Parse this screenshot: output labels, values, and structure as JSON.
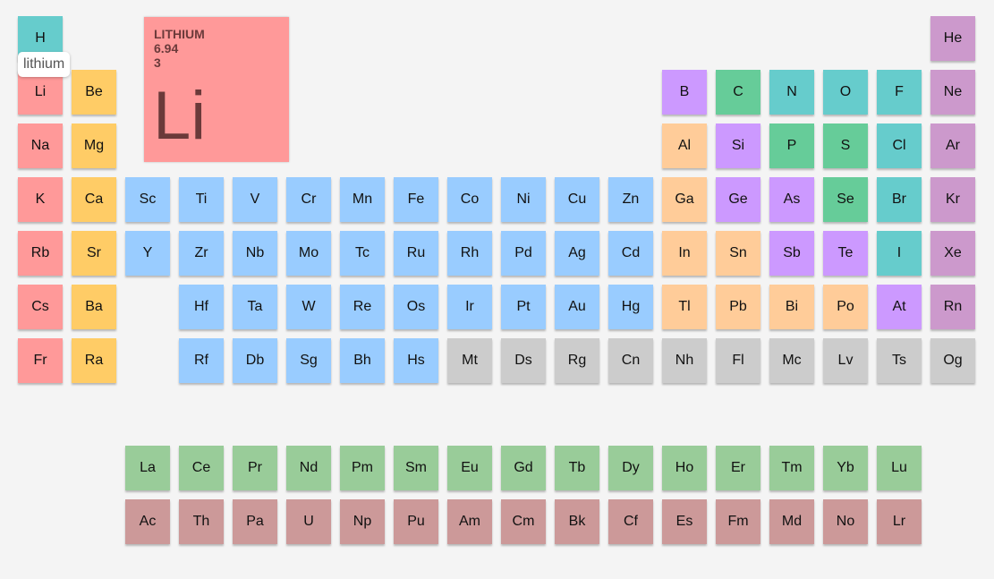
{
  "categories": {
    "nonmetal": "#66cccc",
    "alkali": "#ff9999",
    "alkaline": "#ffcc66",
    "transition": "#99ccff",
    "post": "#ffcc99",
    "metalloid": "#cc99ff",
    "other": "#66cc99",
    "noble": "#cc99cc",
    "unknown": "#cccccc",
    "lanthanide": "#99cc99",
    "actinide": "#cc9999"
  },
  "elements": [
    {
      "symbol": "H",
      "period": 1,
      "group": 1,
      "category": "nonmetal"
    },
    {
      "symbol": "He",
      "period": 1,
      "group": 18,
      "category": "noble"
    },
    {
      "symbol": "Li",
      "period": 2,
      "group": 1,
      "category": "alkali"
    },
    {
      "symbol": "Be",
      "period": 2,
      "group": 2,
      "category": "alkaline"
    },
    {
      "symbol": "B",
      "period": 2,
      "group": 13,
      "category": "metalloid"
    },
    {
      "symbol": "C",
      "period": 2,
      "group": 14,
      "category": "other"
    },
    {
      "symbol": "N",
      "period": 2,
      "group": 15,
      "category": "nonmetal"
    },
    {
      "symbol": "O",
      "period": 2,
      "group": 16,
      "category": "nonmetal"
    },
    {
      "symbol": "F",
      "period": 2,
      "group": 17,
      "category": "nonmetal"
    },
    {
      "symbol": "Ne",
      "period": 2,
      "group": 18,
      "category": "noble"
    },
    {
      "symbol": "Na",
      "period": 3,
      "group": 1,
      "category": "alkali"
    },
    {
      "symbol": "Mg",
      "period": 3,
      "group": 2,
      "category": "alkaline"
    },
    {
      "symbol": "Al",
      "period": 3,
      "group": 13,
      "category": "post"
    },
    {
      "symbol": "Si",
      "period": 3,
      "group": 14,
      "category": "metalloid"
    },
    {
      "symbol": "P",
      "period": 3,
      "group": 15,
      "category": "other"
    },
    {
      "symbol": "S",
      "period": 3,
      "group": 16,
      "category": "other"
    },
    {
      "symbol": "Cl",
      "period": 3,
      "group": 17,
      "category": "nonmetal"
    },
    {
      "symbol": "Ar",
      "period": 3,
      "group": 18,
      "category": "noble"
    },
    {
      "symbol": "K",
      "period": 4,
      "group": 1,
      "category": "alkali"
    },
    {
      "symbol": "Ca",
      "period": 4,
      "group": 2,
      "category": "alkaline"
    },
    {
      "symbol": "Sc",
      "period": 4,
      "group": 3,
      "category": "transition"
    },
    {
      "symbol": "Ti",
      "period": 4,
      "group": 4,
      "category": "transition"
    },
    {
      "symbol": "V",
      "period": 4,
      "group": 5,
      "category": "transition"
    },
    {
      "symbol": "Cr",
      "period": 4,
      "group": 6,
      "category": "transition"
    },
    {
      "symbol": "Mn",
      "period": 4,
      "group": 7,
      "category": "transition"
    },
    {
      "symbol": "Fe",
      "period": 4,
      "group": 8,
      "category": "transition"
    },
    {
      "symbol": "Co",
      "period": 4,
      "group": 9,
      "category": "transition"
    },
    {
      "symbol": "Ni",
      "period": 4,
      "group": 10,
      "category": "transition"
    },
    {
      "symbol": "Cu",
      "period": 4,
      "group": 11,
      "category": "transition"
    },
    {
      "symbol": "Zn",
      "period": 4,
      "group": 12,
      "category": "transition"
    },
    {
      "symbol": "Ga",
      "period": 4,
      "group": 13,
      "category": "post"
    },
    {
      "symbol": "Ge",
      "period": 4,
      "group": 14,
      "category": "metalloid"
    },
    {
      "symbol": "As",
      "period": 4,
      "group": 15,
      "category": "metalloid"
    },
    {
      "symbol": "Se",
      "period": 4,
      "group": 16,
      "category": "other"
    },
    {
      "symbol": "Br",
      "period": 4,
      "group": 17,
      "category": "nonmetal"
    },
    {
      "symbol": "Kr",
      "period": 4,
      "group": 18,
      "category": "noble"
    },
    {
      "symbol": "Rb",
      "period": 5,
      "group": 1,
      "category": "alkali"
    },
    {
      "symbol": "Sr",
      "period": 5,
      "group": 2,
      "category": "alkaline"
    },
    {
      "symbol": "Y",
      "period": 5,
      "group": 3,
      "category": "transition"
    },
    {
      "symbol": "Zr",
      "period": 5,
      "group": 4,
      "category": "transition"
    },
    {
      "symbol": "Nb",
      "period": 5,
      "group": 5,
      "category": "transition"
    },
    {
      "symbol": "Mo",
      "period": 5,
      "group": 6,
      "category": "transition"
    },
    {
      "symbol": "Tc",
      "period": 5,
      "group": 7,
      "category": "transition"
    },
    {
      "symbol": "Ru",
      "period": 5,
      "group": 8,
      "category": "transition"
    },
    {
      "symbol": "Rh",
      "period": 5,
      "group": 9,
      "category": "transition"
    },
    {
      "symbol": "Pd",
      "period": 5,
      "group": 10,
      "category": "transition"
    },
    {
      "symbol": "Ag",
      "period": 5,
      "group": 11,
      "category": "transition"
    },
    {
      "symbol": "Cd",
      "period": 5,
      "group": 12,
      "category": "transition"
    },
    {
      "symbol": "In",
      "period": 5,
      "group": 13,
      "category": "post"
    },
    {
      "symbol": "Sn",
      "period": 5,
      "group": 14,
      "category": "post"
    },
    {
      "symbol": "Sb",
      "period": 5,
      "group": 15,
      "category": "metalloid"
    },
    {
      "symbol": "Te",
      "period": 5,
      "group": 16,
      "category": "metalloid"
    },
    {
      "symbol": "I",
      "period": 5,
      "group": 17,
      "category": "nonmetal"
    },
    {
      "symbol": "Xe",
      "period": 5,
      "group": 18,
      "category": "noble"
    },
    {
      "symbol": "Cs",
      "period": 6,
      "group": 1,
      "category": "alkali"
    },
    {
      "symbol": "Ba",
      "period": 6,
      "group": 2,
      "category": "alkaline"
    },
    {
      "symbol": "Hf",
      "period": 6,
      "group": 4,
      "category": "transition"
    },
    {
      "symbol": "Ta",
      "period": 6,
      "group": 5,
      "category": "transition"
    },
    {
      "symbol": "W",
      "period": 6,
      "group": 6,
      "category": "transition"
    },
    {
      "symbol": "Re",
      "period": 6,
      "group": 7,
      "category": "transition"
    },
    {
      "symbol": "Os",
      "period": 6,
      "group": 8,
      "category": "transition"
    },
    {
      "symbol": "Ir",
      "period": 6,
      "group": 9,
      "category": "transition"
    },
    {
      "symbol": "Pt",
      "period": 6,
      "group": 10,
      "category": "transition"
    },
    {
      "symbol": "Au",
      "period": 6,
      "group": 11,
      "category": "transition"
    },
    {
      "symbol": "Hg",
      "period": 6,
      "group": 12,
      "category": "transition"
    },
    {
      "symbol": "Tl",
      "period": 6,
      "group": 13,
      "category": "post"
    },
    {
      "symbol": "Pb",
      "period": 6,
      "group": 14,
      "category": "post"
    },
    {
      "symbol": "Bi",
      "period": 6,
      "group": 15,
      "category": "post"
    },
    {
      "symbol": "Po",
      "period": 6,
      "group": 16,
      "category": "post"
    },
    {
      "symbol": "At",
      "period": 6,
      "group": 17,
      "category": "metalloid"
    },
    {
      "symbol": "Rn",
      "period": 6,
      "group": 18,
      "category": "noble"
    },
    {
      "symbol": "Fr",
      "period": 7,
      "group": 1,
      "category": "alkali"
    },
    {
      "symbol": "Ra",
      "period": 7,
      "group": 2,
      "category": "alkaline"
    },
    {
      "symbol": "Rf",
      "period": 7,
      "group": 4,
      "category": "transition"
    },
    {
      "symbol": "Db",
      "period": 7,
      "group": 5,
      "category": "transition"
    },
    {
      "symbol": "Sg",
      "period": 7,
      "group": 6,
      "category": "transition"
    },
    {
      "symbol": "Bh",
      "period": 7,
      "group": 7,
      "category": "transition"
    },
    {
      "symbol": "Hs",
      "period": 7,
      "group": 8,
      "category": "transition"
    },
    {
      "symbol": "Mt",
      "period": 7,
      "group": 9,
      "category": "unknown"
    },
    {
      "symbol": "Ds",
      "period": 7,
      "group": 10,
      "category": "unknown"
    },
    {
      "symbol": "Rg",
      "period": 7,
      "group": 11,
      "category": "unknown"
    },
    {
      "symbol": "Cn",
      "period": 7,
      "group": 12,
      "category": "unknown"
    },
    {
      "symbol": "Nh",
      "period": 7,
      "group": 13,
      "category": "unknown"
    },
    {
      "symbol": "Fl",
      "period": 7,
      "group": 14,
      "category": "unknown"
    },
    {
      "symbol": "Mc",
      "period": 7,
      "group": 15,
      "category": "unknown"
    },
    {
      "symbol": "Lv",
      "period": 7,
      "group": 16,
      "category": "unknown"
    },
    {
      "symbol": "Ts",
      "period": 7,
      "group": 17,
      "category": "unknown"
    },
    {
      "symbol": "Og",
      "period": 7,
      "group": 18,
      "category": "unknown"
    },
    {
      "symbol": "La",
      "period": 9,
      "group": 3,
      "category": "lanthanide"
    },
    {
      "symbol": "Ce",
      "period": 9,
      "group": 4,
      "category": "lanthanide"
    },
    {
      "symbol": "Pr",
      "period": 9,
      "group": 5,
      "category": "lanthanide"
    },
    {
      "symbol": "Nd",
      "period": 9,
      "group": 6,
      "category": "lanthanide"
    },
    {
      "symbol": "Pm",
      "period": 9,
      "group": 7,
      "category": "lanthanide"
    },
    {
      "symbol": "Sm",
      "period": 9,
      "group": 8,
      "category": "lanthanide"
    },
    {
      "symbol": "Eu",
      "period": 9,
      "group": 9,
      "category": "lanthanide"
    },
    {
      "symbol": "Gd",
      "period": 9,
      "group": 10,
      "category": "lanthanide"
    },
    {
      "symbol": "Tb",
      "period": 9,
      "group": 11,
      "category": "lanthanide"
    },
    {
      "symbol": "Dy",
      "period": 9,
      "group": 12,
      "category": "lanthanide"
    },
    {
      "symbol": "Ho",
      "period": 9,
      "group": 13,
      "category": "lanthanide"
    },
    {
      "symbol": "Er",
      "period": 9,
      "group": 14,
      "category": "lanthanide"
    },
    {
      "symbol": "Tm",
      "period": 9,
      "group": 15,
      "category": "lanthanide"
    },
    {
      "symbol": "Yb",
      "period": 9,
      "group": 16,
      "category": "lanthanide"
    },
    {
      "symbol": "Lu",
      "period": 9,
      "group": 17,
      "category": "lanthanide"
    },
    {
      "symbol": "Ac",
      "period": 10,
      "group": 3,
      "category": "actinide"
    },
    {
      "symbol": "Th",
      "period": 10,
      "group": 4,
      "category": "actinide"
    },
    {
      "symbol": "Pa",
      "period": 10,
      "group": 5,
      "category": "actinide"
    },
    {
      "symbol": "U",
      "period": 10,
      "group": 6,
      "category": "actinide"
    },
    {
      "symbol": "Np",
      "period": 10,
      "group": 7,
      "category": "actinide"
    },
    {
      "symbol": "Pu",
      "period": 10,
      "group": 8,
      "category": "actinide"
    },
    {
      "symbol": "Am",
      "period": 10,
      "group": 9,
      "category": "actinide"
    },
    {
      "symbol": "Cm",
      "period": 10,
      "group": 10,
      "category": "actinide"
    },
    {
      "symbol": "Bk",
      "period": 10,
      "group": 11,
      "category": "actinide"
    },
    {
      "symbol": "Cf",
      "period": 10,
      "group": 12,
      "category": "actinide"
    },
    {
      "symbol": "Es",
      "period": 10,
      "group": 13,
      "category": "actinide"
    },
    {
      "symbol": "Fm",
      "period": 10,
      "group": 14,
      "category": "actinide"
    },
    {
      "symbol": "Md",
      "period": 10,
      "group": 15,
      "category": "actinide"
    },
    {
      "symbol": "No",
      "period": 10,
      "group": 16,
      "category": "actinide"
    },
    {
      "symbol": "Lr",
      "period": 10,
      "group": 17,
      "category": "actinide"
    }
  ],
  "detail": {
    "name": "LITHIUM",
    "mass": "6.94",
    "number": "3",
    "symbol": "Li",
    "bg_color": "#ff9999",
    "text_color": "#6b3a3a"
  },
  "tooltip": {
    "text": "lithium"
  }
}
